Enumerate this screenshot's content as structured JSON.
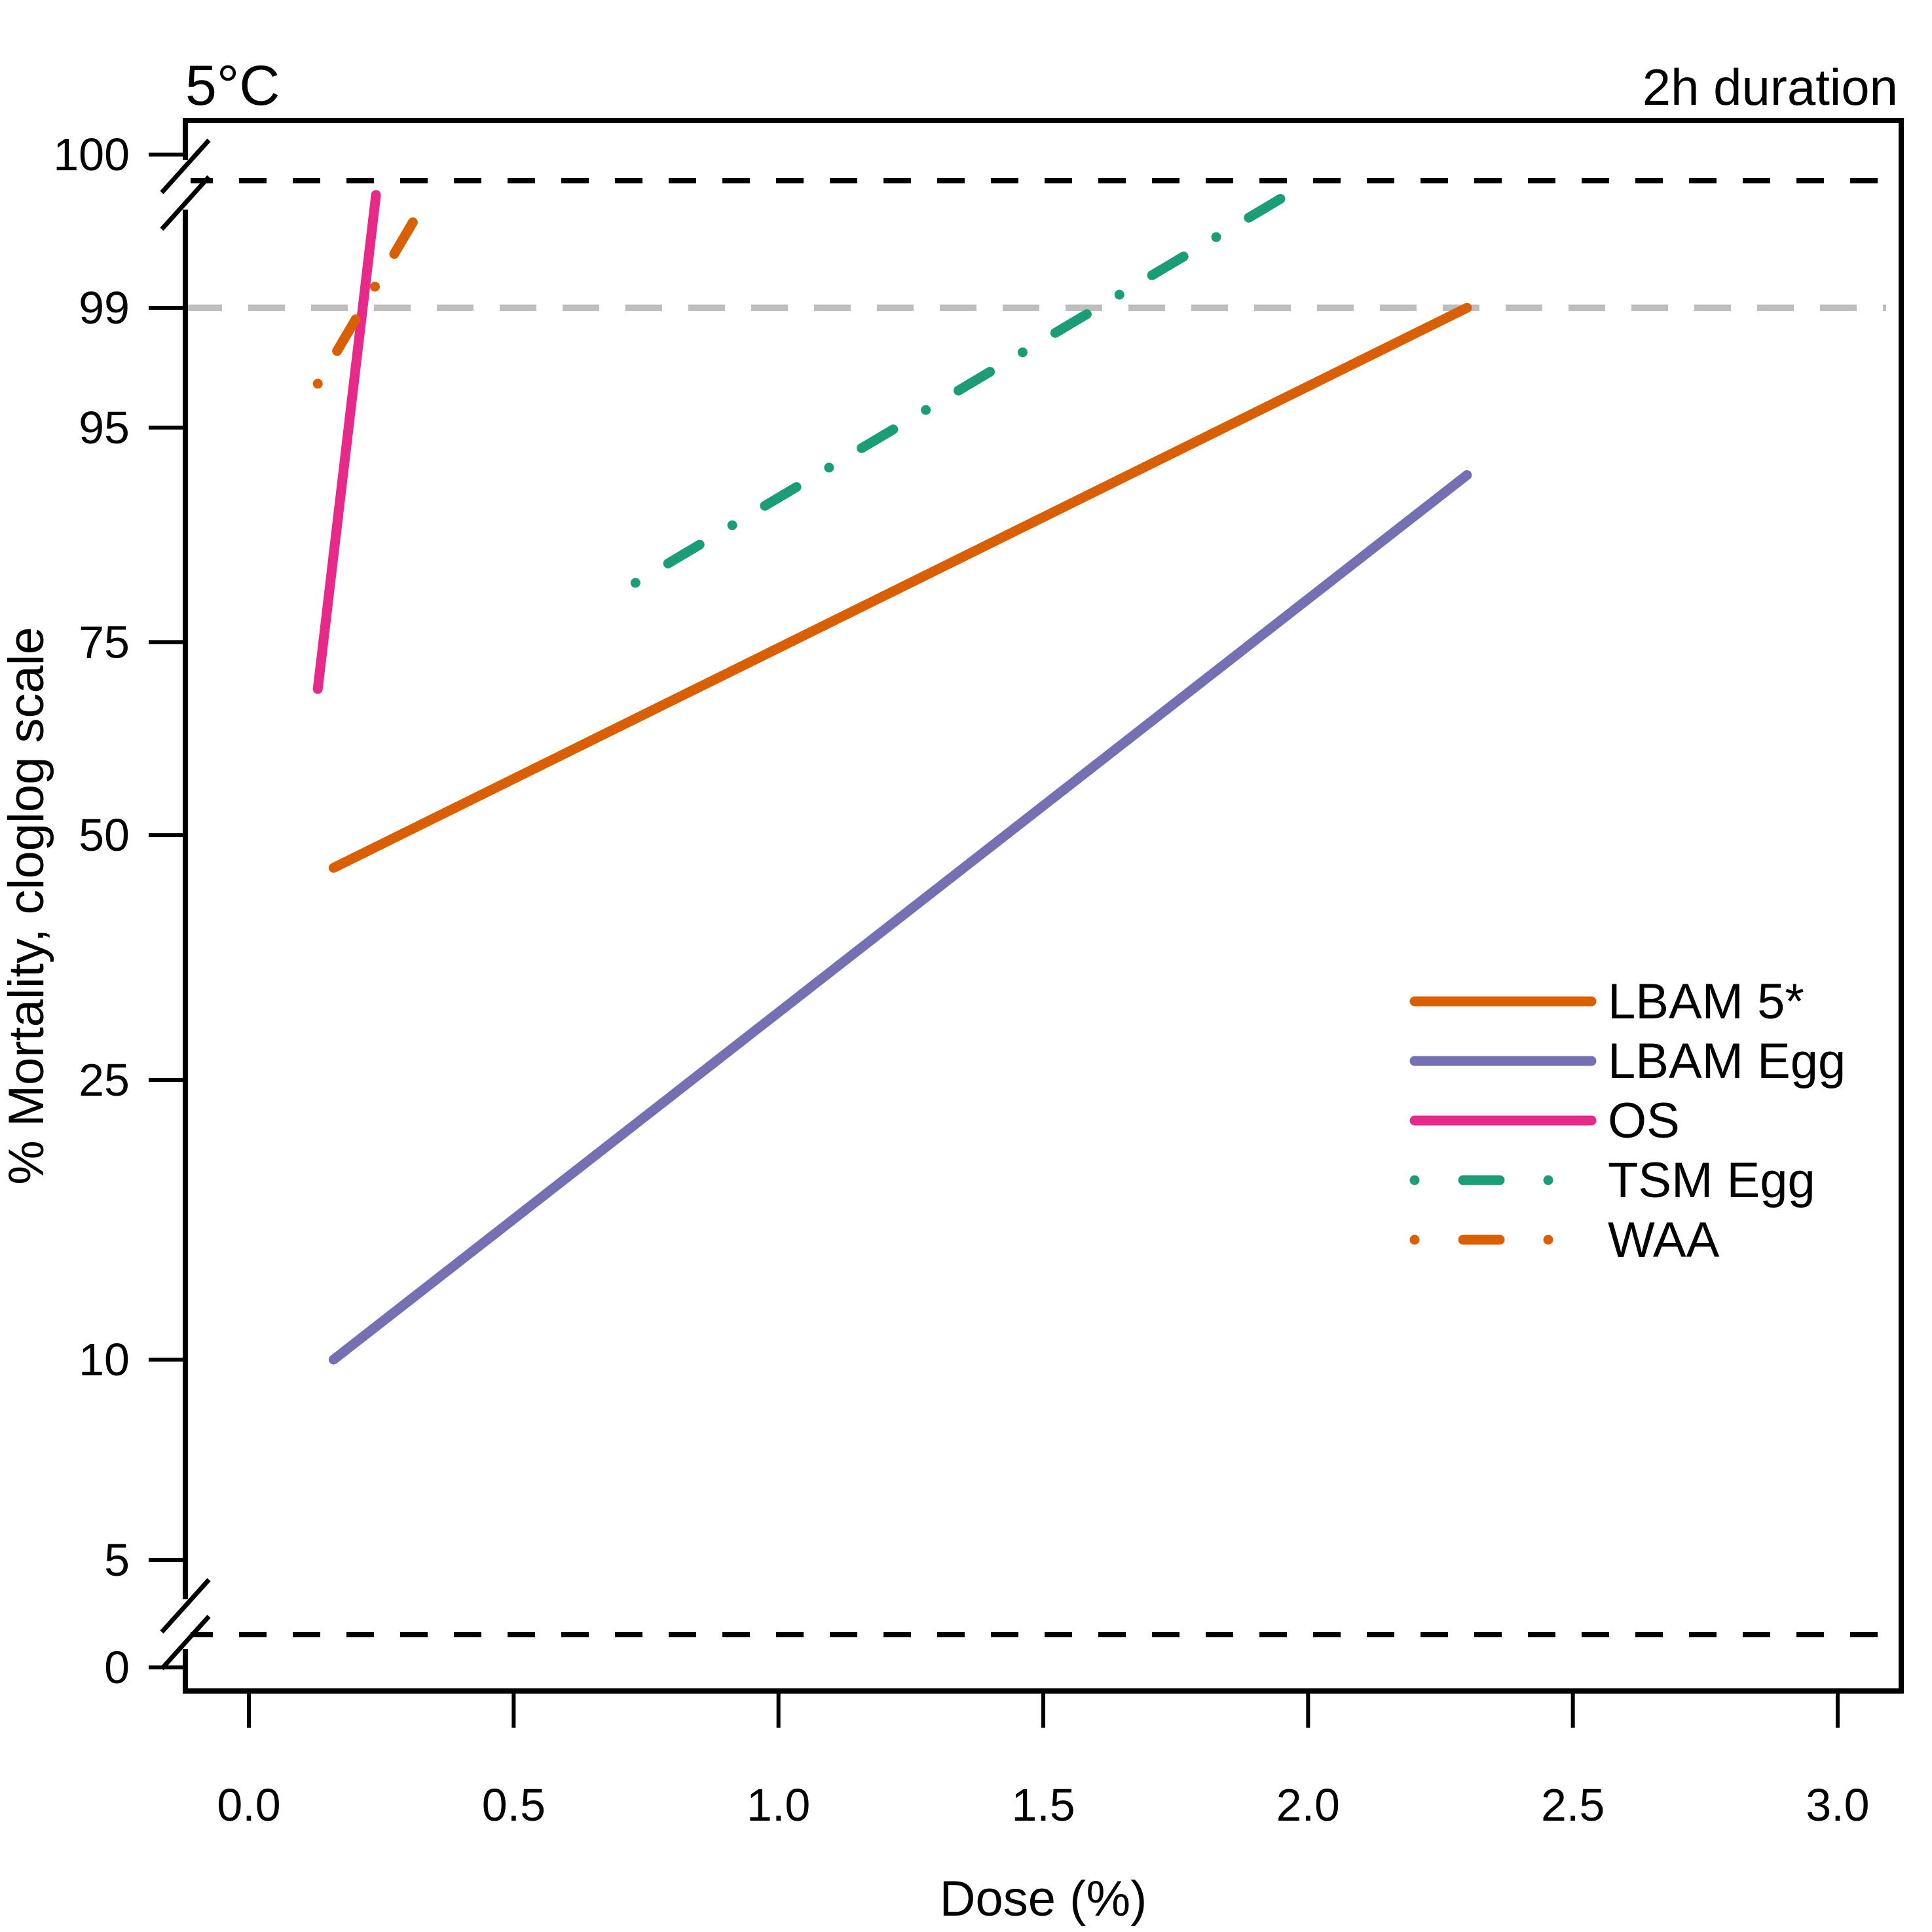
{
  "chart_data": {
    "type": "line",
    "title": "5°C",
    "subtitle": "2h duration",
    "xlabel": "Dose (%)",
    "ylabel": "% Mortality, cloglog scale",
    "xlim": [
      -0.12,
      3.12
    ],
    "x_ticks": [
      "0.0",
      "0.5",
      "1.0",
      "1.5",
      "2.0",
      "2.5",
      "3.0"
    ],
    "y_scale": "cloglog",
    "y_ticks": [
      "0",
      "5",
      "10",
      "25",
      "50",
      "75",
      "95",
      "99",
      "100"
    ],
    "axis_breaks": [
      "near 0",
      "near 100"
    ],
    "reference_lines": [
      {
        "y": 99,
        "style": "dashed",
        "color": "#bebebe"
      },
      {
        "y": 0,
        "style": "dashed",
        "color": "#000000"
      },
      {
        "y": 100,
        "style": "dashed",
        "color": "#000000"
      }
    ],
    "legend_position": "right",
    "series": [
      {
        "name": "LBAM 5*",
        "color": "#D95F02",
        "dash": "solid",
        "x": [
          0.16,
          2.3
        ],
        "y": [
          46,
          99
        ]
      },
      {
        "name": "LBAM Egg",
        "color": "#7570B3",
        "dash": "solid",
        "x": [
          0.16,
          2.3
        ],
        "y": [
          10,
          92
        ]
      },
      {
        "name": "OS",
        "color": "#E7298A",
        "dash": "solid",
        "x": [
          0.13,
          0.24
        ],
        "y": [
          69,
          99.9
        ]
      },
      {
        "name": "TSM Egg",
        "color": "#1B9E77",
        "dash": "dotdash",
        "x": [
          0.73,
          1.96
        ],
        "y": [
          82,
          99.9
        ]
      },
      {
        "name": "WAA",
        "color": "#D95F02",
        "dash": "dotdash",
        "x": [
          0.13,
          0.34
        ],
        "y": [
          97,
          99.9
        ]
      }
    ]
  }
}
